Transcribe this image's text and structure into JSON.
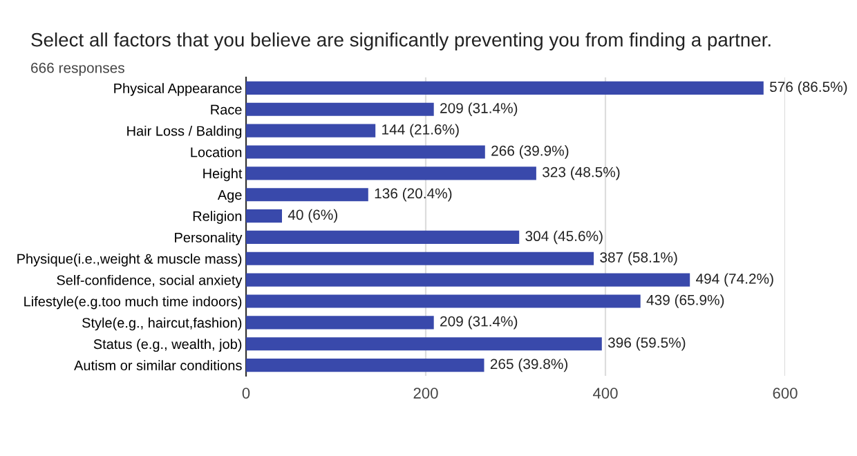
{
  "chart_data": {
    "type": "bar",
    "orientation": "horizontal",
    "title": "Select all factors that you believe are significantly preventing you from finding a partner.",
    "subtitle": "666 responses",
    "categories": [
      "Physical Appearance",
      "Race",
      "Hair Loss / Balding",
      "Location",
      "Height",
      "Age",
      "Religion",
      "Personality",
      "Physique(i.e.,weight & muscle mass)",
      "Self-confidence, social anxiety",
      "Lifestyle(e.g.too much time indoors)",
      "Style(e.g., haircut,fashion)",
      "Status (e.g., wealth, job)",
      "Autism or similar conditions"
    ],
    "values": [
      576,
      209,
      144,
      266,
      323,
      136,
      40,
      304,
      387,
      494,
      439,
      209,
      396,
      265
    ],
    "value_labels": [
      "576 (86.5%)",
      "209 (31.4%)",
      "144 (21.6%)",
      "266 (39.9%)",
      "323 (48.5%)",
      "136 (20.4%)",
      "40 (6%)",
      "304 (45.6%)",
      "387 (58.1%)",
      "494 (74.2%)",
      "439 (65.9%)",
      "209 (31.4%)",
      "396 (59.5%)",
      "265 (39.8%)"
    ],
    "color": "#3949ab",
    "xlim": [
      0,
      600
    ],
    "xticks": [
      0,
      200,
      400,
      600
    ],
    "grid": "x"
  }
}
